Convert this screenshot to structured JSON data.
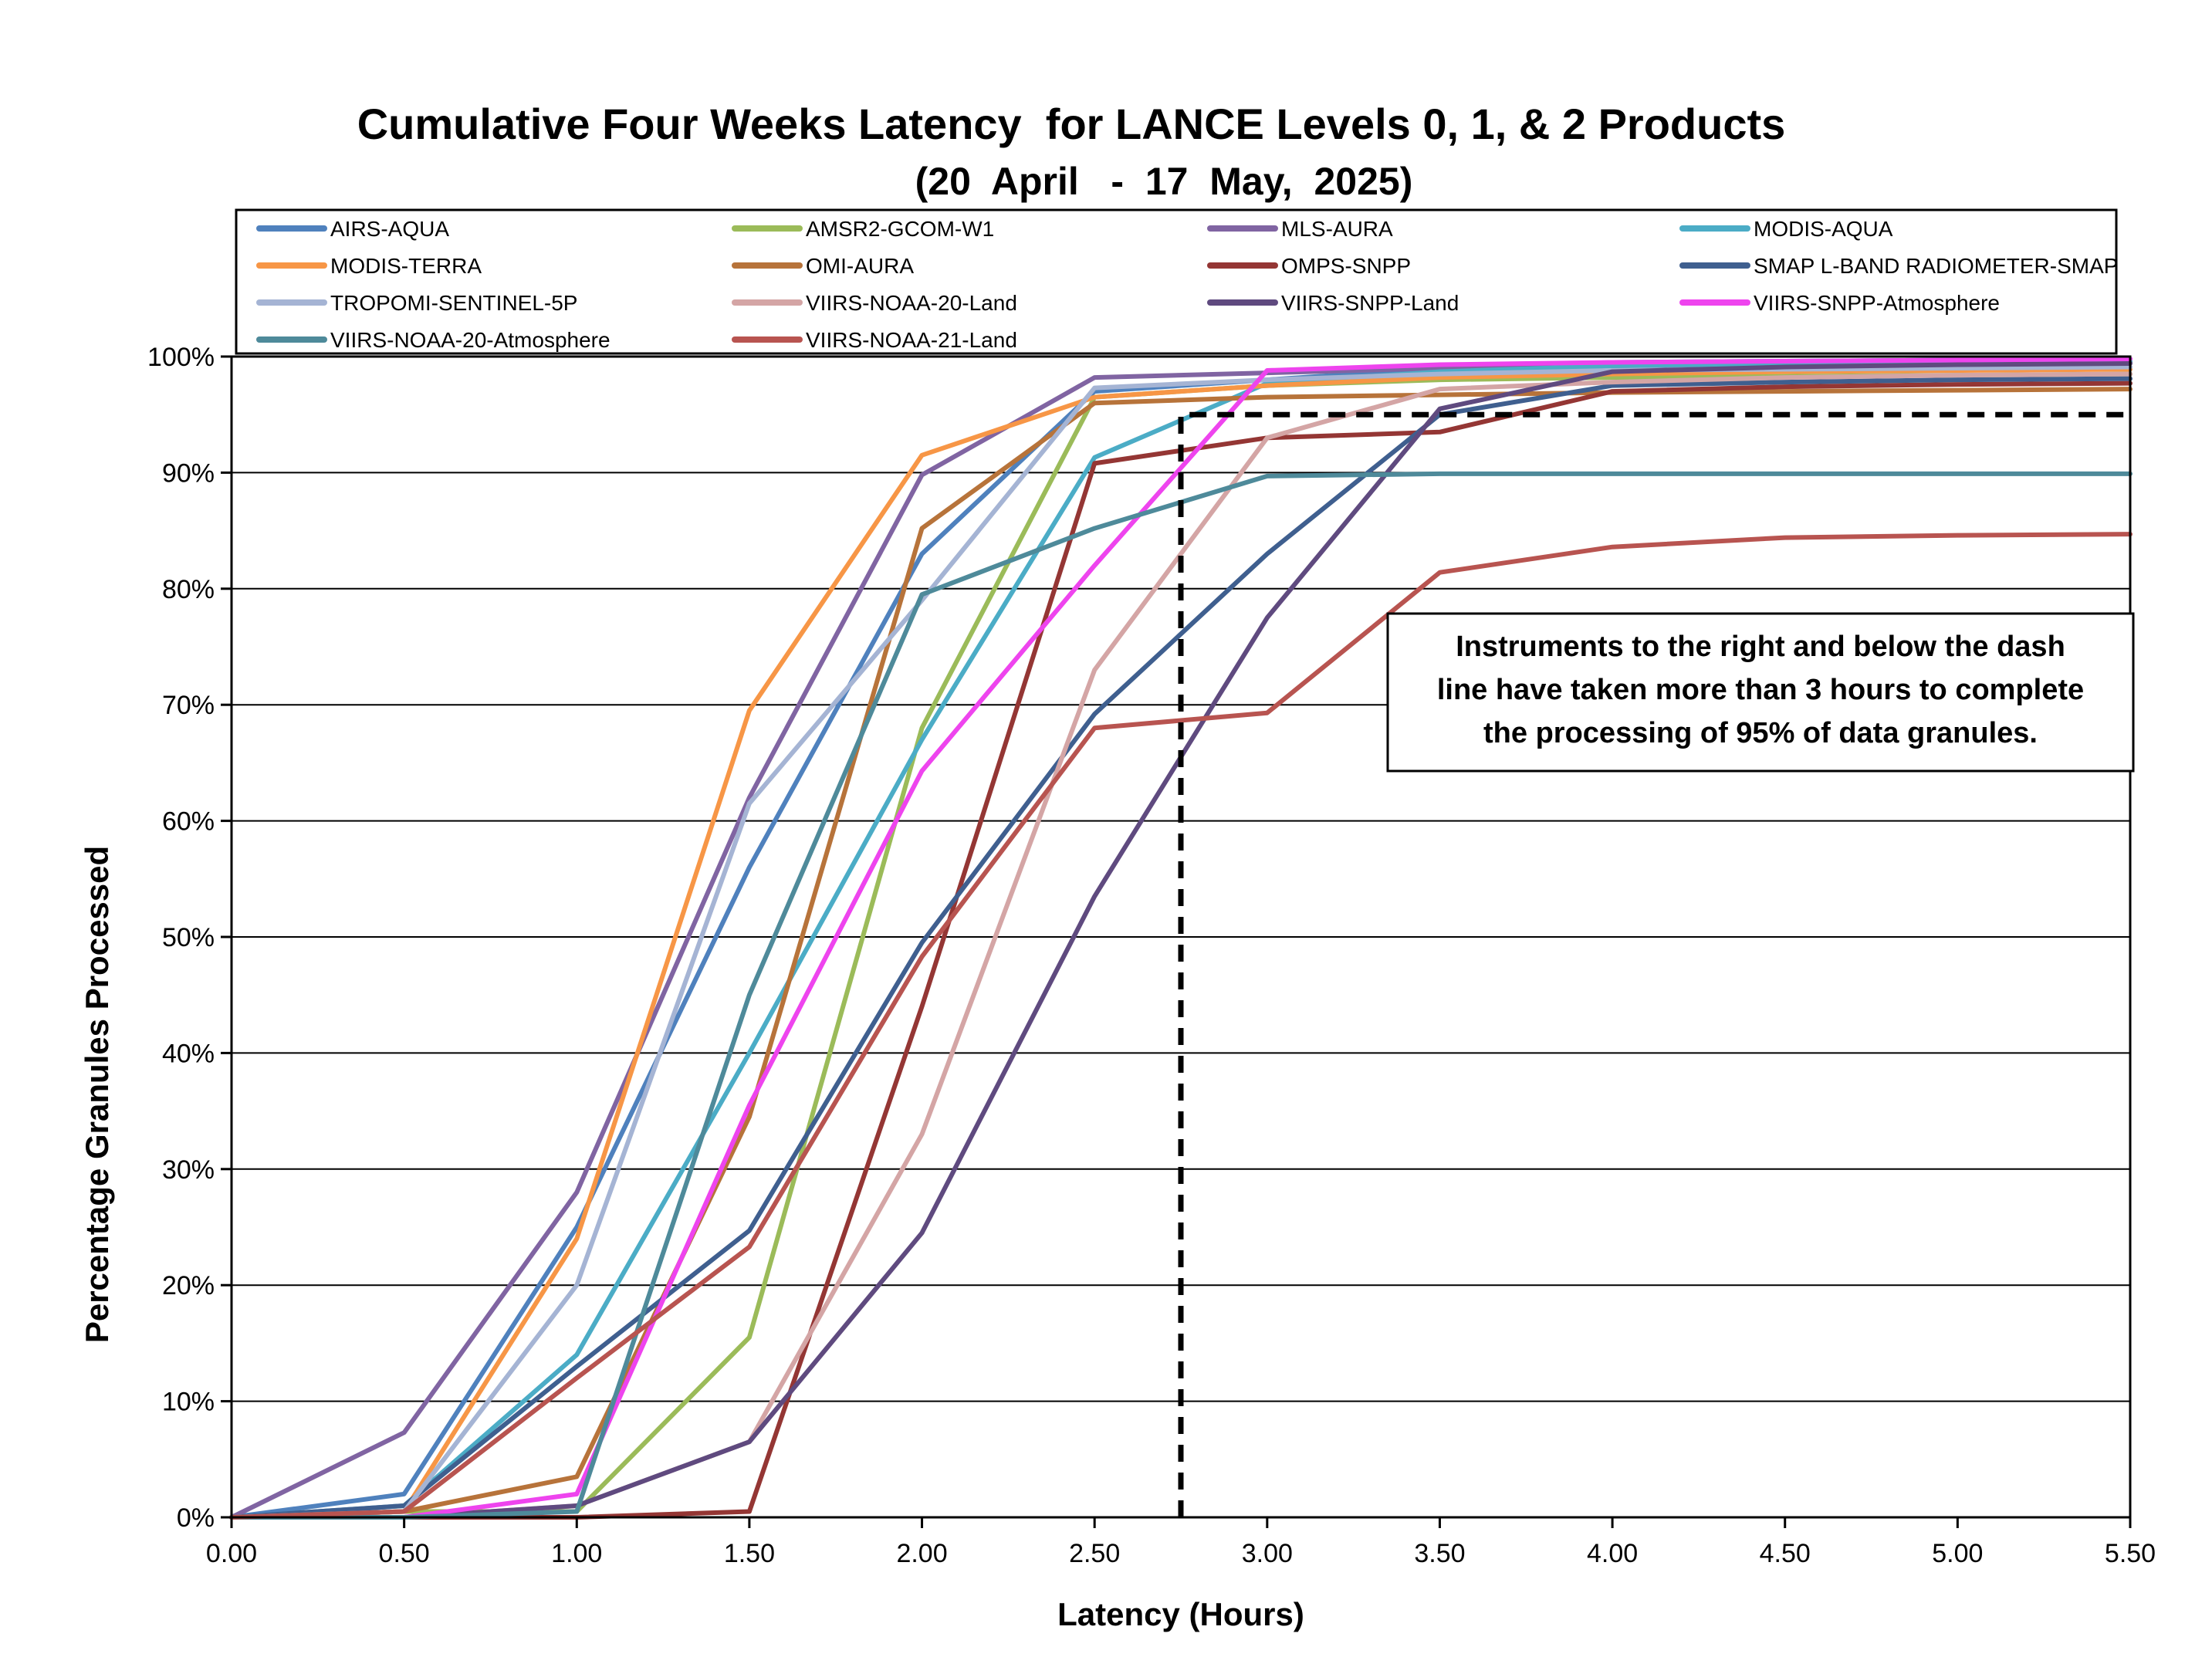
{
  "chart_data": {
    "type": "line",
    "title": "Cumulative Four Weeks Latency  for LANCE Levels 0, 1, & 2 Products",
    "subtitle": "(20  April   -  17  May,  2025)",
    "xlabel": "Latency (Hours)",
    "ylabel": "Percentage Granules Processed",
    "xlim": [
      0,
      5.5
    ],
    "ylim": [
      0,
      100
    ],
    "x_ticks": [
      "0.00",
      "0.50",
      "1.00",
      "1.50",
      "2.00",
      "2.50",
      "3.00",
      "3.50",
      "4.00",
      "4.50",
      "5.00",
      "5.50"
    ],
    "y_ticks": [
      "0%",
      "10%",
      "20%",
      "30%",
      "40%",
      "50%",
      "60%",
      "70%",
      "80%",
      "90%",
      "100%"
    ],
    "grid": "horizontal",
    "legend_position": "top",
    "x": [
      0,
      0.5,
      1.0,
      1.5,
      2.0,
      2.5,
      3.0,
      3.5,
      4.0,
      4.5,
      5.0,
      5.5
    ],
    "series": [
      {
        "name": "AIRS-AQUA",
        "color": "#4F81BD",
        "values": [
          0,
          2,
          25,
          56,
          83,
          97,
          98,
          99,
          99.5,
          99.6,
          99.7,
          99.8
        ]
      },
      {
        "name": "AMSR2-GCOM-W1",
        "color": "#9BBB59",
        "values": [
          0,
          0.5,
          0.5,
          15.5,
          68,
          96.5,
          97.5,
          98,
          98.2,
          98.3,
          98.4,
          98.5
        ]
      },
      {
        "name": "MLS-AURA",
        "color": "#8064A2",
        "values": [
          0,
          7.3,
          28,
          62,
          89.8,
          98.2,
          98.6,
          99,
          99.2,
          99.3,
          99.4,
          99.5
        ]
      },
      {
        "name": "MODIS-AQUA",
        "color": "#4BACC6",
        "values": [
          0,
          1,
          14,
          40,
          67,
          91.3,
          97.7,
          98.7,
          99.2,
          99.4,
          99.5,
          99.6
        ]
      },
      {
        "name": "MODIS-TERRA",
        "color": "#F79646",
        "values": [
          0,
          0.5,
          24,
          69.5,
          91.5,
          96.5,
          97.5,
          98.2,
          98.5,
          98.7,
          98.8,
          98.9
        ]
      },
      {
        "name": "OMI-AURA",
        "color": "#B7733A",
        "values": [
          0,
          0.5,
          3.5,
          34.5,
          85.2,
          96,
          96.5,
          96.7,
          96.9,
          97.0,
          97.1,
          97.2
        ]
      },
      {
        "name": "OMPS-SNPP",
        "color": "#943634",
        "values": [
          0,
          0,
          0,
          0.5,
          44,
          90.8,
          93,
          93.5,
          97,
          97.4,
          97.6,
          97.7
        ]
      },
      {
        "name": "SMAP L-BAND RADIOMETER-SMAP",
        "color": "#3F5F8F",
        "values": [
          0,
          1,
          13,
          24.7,
          49.5,
          69.2,
          83,
          95,
          97.5,
          97.8,
          98,
          98.1
        ]
      },
      {
        "name": "TROPOMI-SENTINEL-5P",
        "color": "#A5B4D4",
        "values": [
          0,
          0.5,
          20,
          61.5,
          79,
          97.3,
          98,
          98.5,
          98.8,
          98.9,
          99,
          99.1
        ]
      },
      {
        "name": "VIIRS-NOAA-20-Land",
        "color": "#D4A5A5",
        "values": [
          0,
          0,
          1,
          6.5,
          33,
          73,
          93,
          97.2,
          97.8,
          98.2,
          98.4,
          98.5
        ]
      },
      {
        "name": "VIIRS-SNPP-Land",
        "color": "#5F4A7F",
        "values": [
          0,
          0,
          1,
          6.5,
          24.5,
          53.5,
          77.5,
          95.5,
          98.7,
          99.1,
          99.3,
          99.4
        ]
      },
      {
        "name": "VIIRS-SNPP-Atmosphere",
        "color": "#EE44EE",
        "values": [
          0,
          0,
          2,
          35.5,
          64.3,
          82,
          98.8,
          99.3,
          99.5,
          99.6,
          99.7,
          99.8
        ]
      },
      {
        "name": "VIIRS-NOAA-20-Atmosphere",
        "color": "#4E8A9A",
        "values": [
          0,
          0,
          0.5,
          45,
          79.5,
          85.2,
          89.7,
          89.9,
          89.9,
          89.9,
          89.9,
          89.9
        ]
      },
      {
        "name": "VIIRS-NOAA-21-Land",
        "color": "#B85450",
        "values": [
          0,
          0.5,
          12,
          23.3,
          48.3,
          68,
          69.3,
          81.4,
          83.6,
          84.4,
          84.6,
          84.7
        ]
      }
    ],
    "reference_line": {
      "style": "dashed",
      "color": "#000000",
      "x": [
        2.75,
        2.75,
        2.8,
        5.5
      ],
      "y": [
        0,
        95,
        95,
        95
      ]
    },
    "annotation": {
      "lines": [
        "Instruments to the right and below the dash",
        "line have taken more than 3 hours to complete",
        "the processing of 95% of data granules."
      ]
    }
  }
}
